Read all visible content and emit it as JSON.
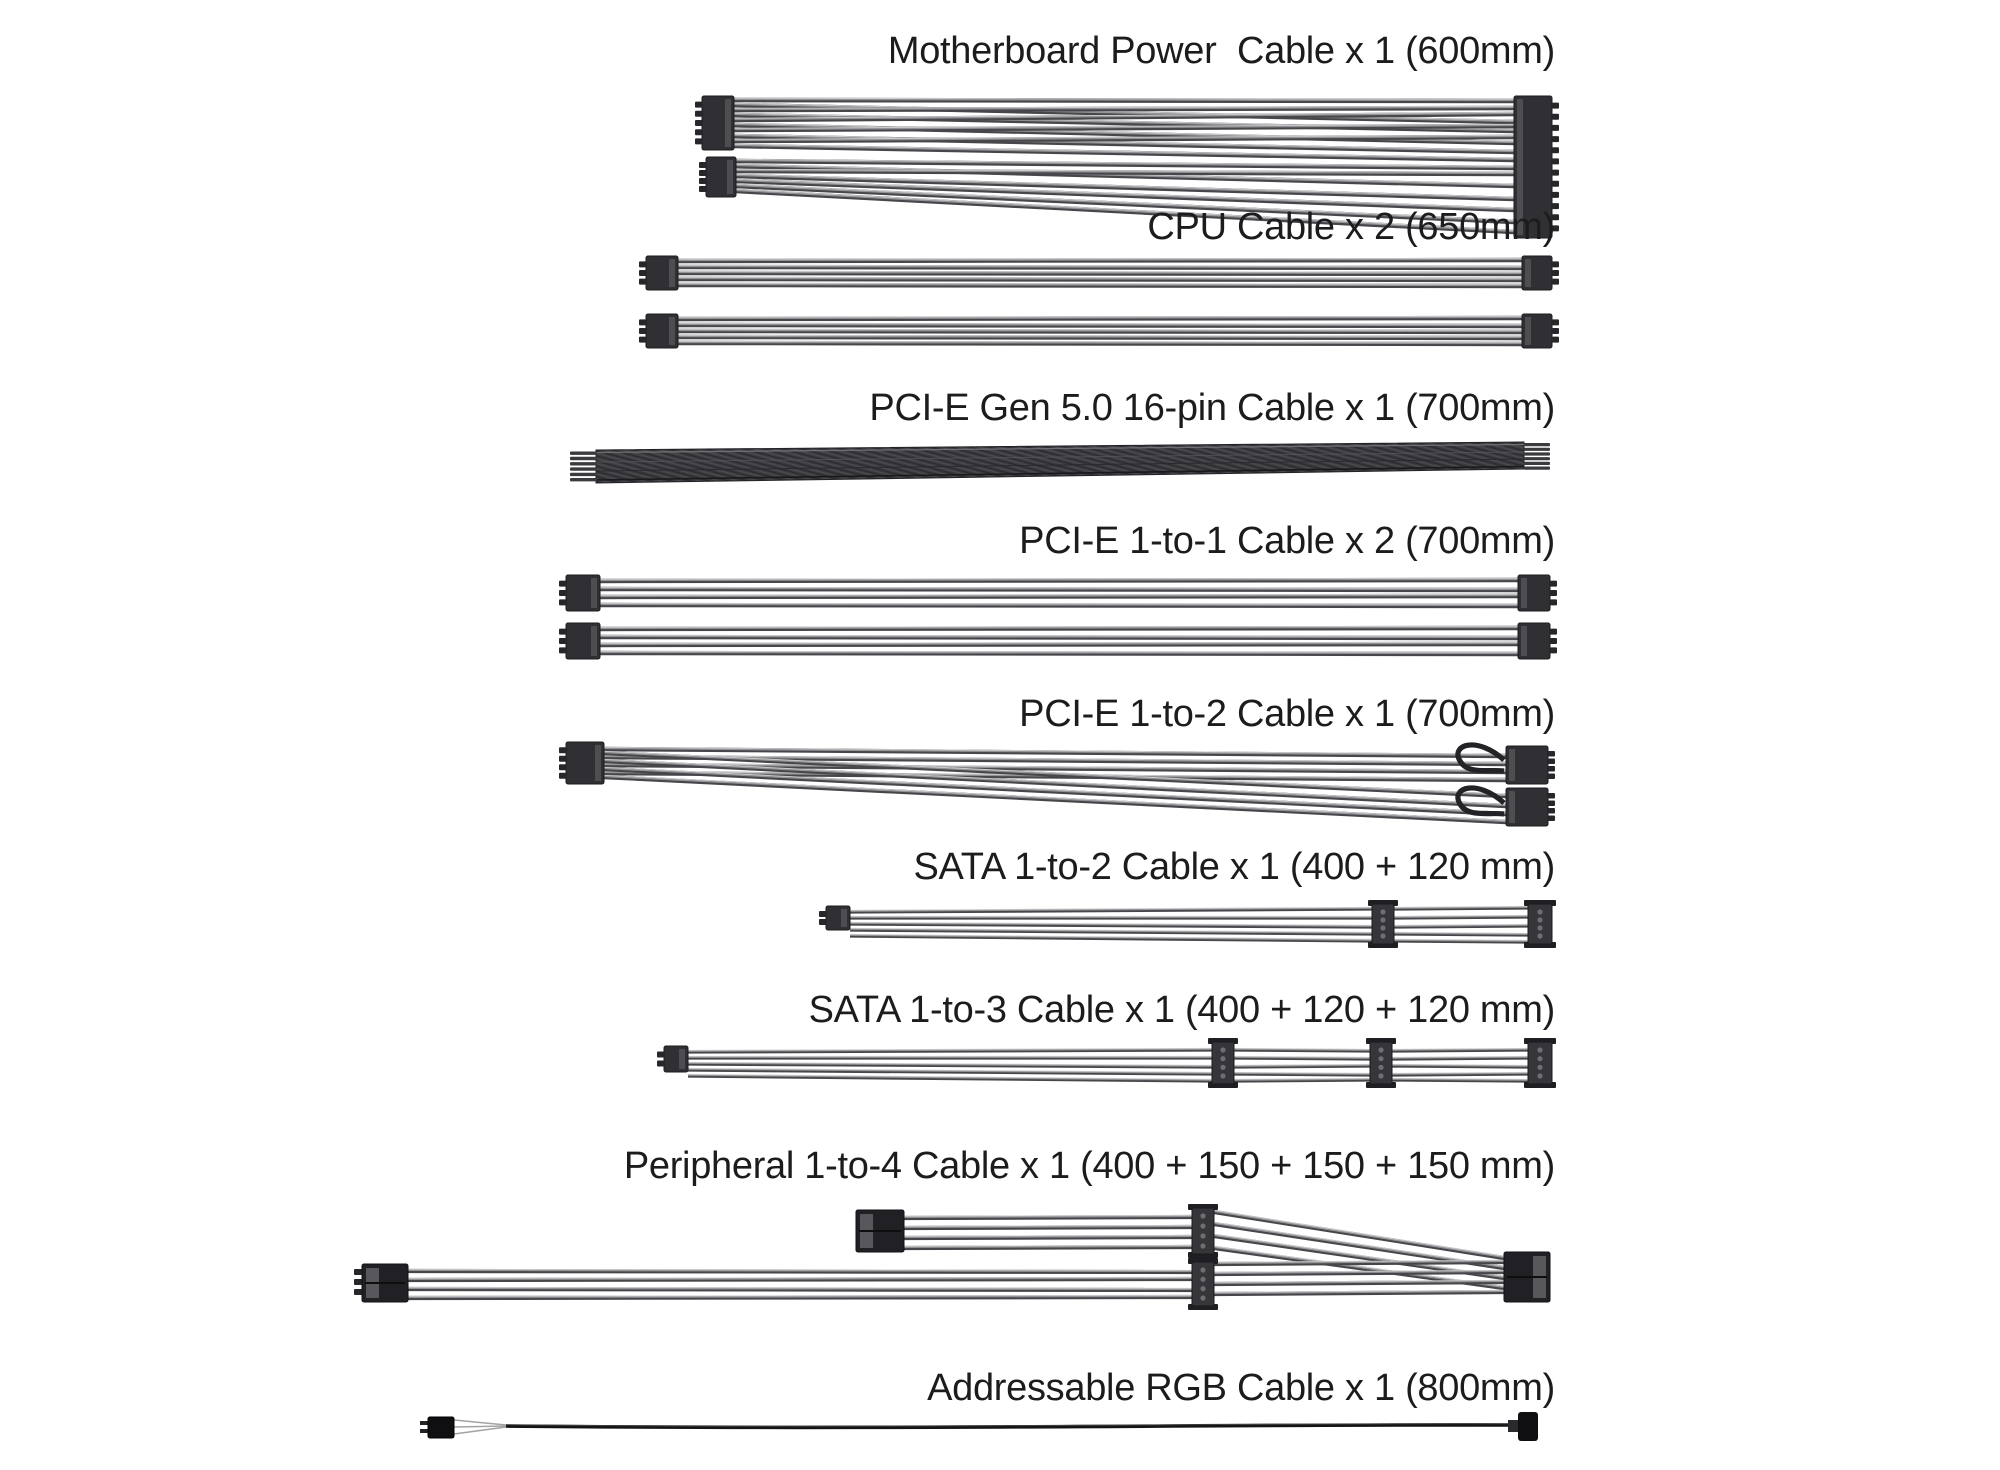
{
  "palette": {
    "background": "#ffffff",
    "label_text": "#1c1c1e",
    "wire_highlight": "#cfcfd1",
    "wire_mid": "#939396",
    "wire_shadow": "#47474b",
    "connector_dark": "#303034",
    "gen5_braid": "#3c3c40"
  },
  "sections": [
    {
      "id": "motherboard-power",
      "label": "Motherboard Power  Cable x 1 (600mm)",
      "quantity": 1,
      "lengths_mm": [
        600
      ]
    },
    {
      "id": "cpu",
      "label": "CPU Cable x 2 (650mm)",
      "quantity": 2,
      "lengths_mm": [
        650
      ]
    },
    {
      "id": "pcie-gen5-16pin",
      "label": "PCI-E Gen 5.0 16-pin Cable x 1 (700mm)",
      "quantity": 1,
      "lengths_mm": [
        700
      ]
    },
    {
      "id": "pcie-1to1",
      "label": "PCI-E 1-to-1 Cable x 2 (700mm)",
      "quantity": 2,
      "lengths_mm": [
        700
      ]
    },
    {
      "id": "pcie-1to2",
      "label": "PCI-E 1-to-2 Cable x 1 (700mm)",
      "quantity": 1,
      "lengths_mm": [
        700
      ]
    },
    {
      "id": "sata-1to2",
      "label": "SATA 1-to-2 Cable x 1 (400 + 120 mm)",
      "quantity": 1,
      "lengths_mm": [
        400,
        120
      ]
    },
    {
      "id": "sata-1to3",
      "label": "SATA 1-to-3 Cable x 1 (400 + 120 + 120 mm)",
      "quantity": 1,
      "lengths_mm": [
        400,
        120,
        120
      ]
    },
    {
      "id": "peripheral-1to4",
      "label": "Peripheral 1-to-4 Cable x 1 (400 + 150 + 150 + 150 mm)",
      "quantity": 1,
      "lengths_mm": [
        400,
        150,
        150,
        150
      ]
    },
    {
      "id": "addressable-rgb",
      "label": "Addressable RGB Cable x 1 (800mm)",
      "quantity": 1,
      "lengths_mm": [
        800
      ]
    }
  ]
}
